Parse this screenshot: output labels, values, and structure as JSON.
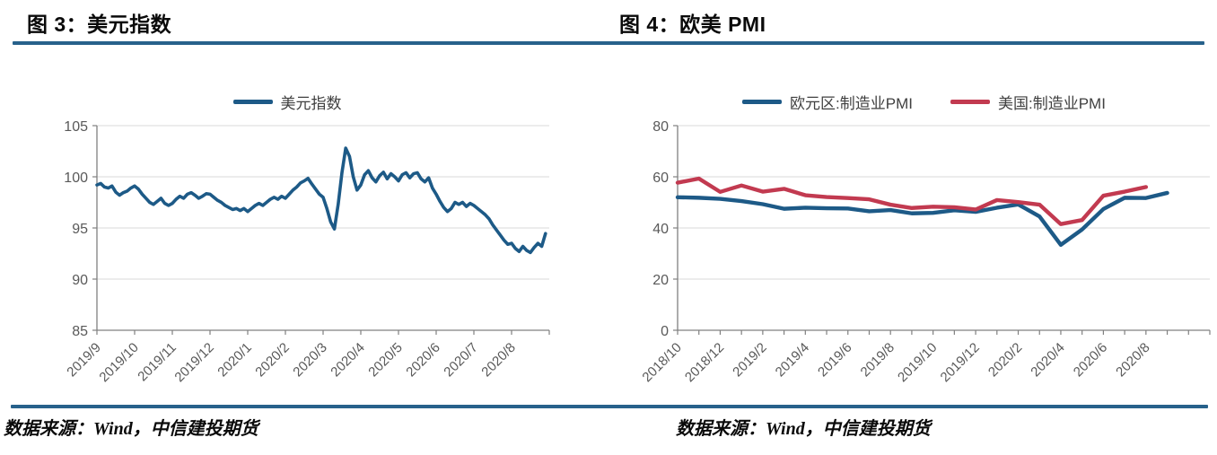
{
  "figures": [
    {
      "title": "图 3：美元指数",
      "source": "数据来源：Wind，中信建投期货"
    },
    {
      "title": "图 4：欧美 PMI",
      "source": "数据来源：Wind，中信建投期货"
    }
  ],
  "colors": {
    "divider": "#27618B",
    "grid": "#D9D9D9",
    "axis": "#808080",
    "tick_label": "#595959",
    "legend_text": "#404040",
    "series_blue": "#1D5A87",
    "series_red": "#C23A50"
  },
  "chart_data": [
    {
      "type": "line",
      "title": "美元指数",
      "xlabel": "",
      "ylabel": "",
      "ylim": [
        85,
        105
      ],
      "yticks": [
        85,
        90,
        95,
        100,
        105
      ],
      "grid": "horizontal",
      "legend_position": "top-center",
      "x_tick_labels": [
        "2019/9",
        "2019/10",
        "2019/11",
        "2019/12",
        "2020/1",
        "2020/2",
        "2020/3",
        "2020/4",
        "2020/5",
        "2020/6",
        "2020/7",
        "2020/8"
      ],
      "x_label_step": 1,
      "points_per_slot": 10,
      "series": [
        {
          "name": "美元指数",
          "color": "#1D5A87",
          "values": [
            99.2,
            99.35,
            99.0,
            98.9,
            99.1,
            98.5,
            98.2,
            98.45,
            98.6,
            98.9,
            99.1,
            98.8,
            98.3,
            97.9,
            97.5,
            97.3,
            97.6,
            97.9,
            97.4,
            97.2,
            97.4,
            97.8,
            98.1,
            97.9,
            98.3,
            98.45,
            98.2,
            97.9,
            98.1,
            98.35,
            98.3,
            98.0,
            97.7,
            97.5,
            97.2,
            97.0,
            96.8,
            96.9,
            96.7,
            96.9,
            96.6,
            96.9,
            97.2,
            97.4,
            97.2,
            97.5,
            97.8,
            98.0,
            97.8,
            98.1,
            97.9,
            98.3,
            98.7,
            99.0,
            99.4,
            99.6,
            99.85,
            99.3,
            98.8,
            98.3,
            98.0,
            96.9,
            95.6,
            94.9,
            97.3,
            100.4,
            102.8,
            102.0,
            100.0,
            98.7,
            99.2,
            100.2,
            100.6,
            99.9,
            99.5,
            100.1,
            100.45,
            99.8,
            100.3,
            100.0,
            99.6,
            100.2,
            100.4,
            99.9,
            100.3,
            100.4,
            99.8,
            99.5,
            99.9,
            98.9,
            98.3,
            97.6,
            97.0,
            96.6,
            96.9,
            97.5,
            97.3,
            97.5,
            97.1,
            97.4,
            97.2,
            96.9,
            96.6,
            96.3,
            95.9,
            95.3,
            94.8,
            94.3,
            93.8,
            93.4,
            93.5,
            93.0,
            92.7,
            93.2,
            92.8,
            92.6,
            93.1,
            93.5,
            93.2,
            94.45
          ]
        }
      ]
    },
    {
      "type": "line",
      "title": "欧美 PMI",
      "xlabel": "",
      "ylabel": "",
      "ylim": [
        0,
        80
      ],
      "yticks": [
        0,
        20,
        40,
        60,
        80
      ],
      "grid": "horizontal",
      "legend_position": "top-center",
      "categories": [
        "2018/10",
        "2018/11",
        "2018/12",
        "2019/1",
        "2019/2",
        "2019/3",
        "2019/4",
        "2019/5",
        "2019/6",
        "2019/7",
        "2019/8",
        "2019/9",
        "2019/10",
        "2019/11",
        "2019/12",
        "2020/1",
        "2020/2",
        "2020/3",
        "2020/4",
        "2020/5",
        "2020/6",
        "2020/7",
        "2020/8",
        "2020/9"
      ],
      "x_tick_labels": [
        "2018/10",
        "2018/12",
        "2019/2",
        "2019/4",
        "2019/6",
        "2019/8",
        "2019/10",
        "2019/12",
        "2020/2",
        "2020/4",
        "2020/6",
        "2020/8"
      ],
      "x_label_step": 2,
      "points_per_slot": 1,
      "series": [
        {
          "name": "欧元区:制造业PMI",
          "color": "#1D5A87",
          "values": [
            52.0,
            51.8,
            51.4,
            50.5,
            49.3,
            47.5,
            47.9,
            47.7,
            47.6,
            46.5,
            47.0,
            45.7,
            45.9,
            46.9,
            46.3,
            47.9,
            49.2,
            44.5,
            33.4,
            39.4,
            47.4,
            51.8,
            51.7,
            53.7
          ]
        },
        {
          "name": "美国:制造业PMI",
          "color": "#C23A50",
          "values": [
            57.7,
            59.3,
            54.1,
            56.6,
            54.2,
            55.3,
            52.8,
            52.1,
            51.7,
            51.2,
            49.1,
            47.8,
            48.3,
            48.1,
            47.2,
            50.9,
            50.1,
            49.1,
            41.5,
            43.1,
            52.6,
            54.2,
            56.0
          ]
        }
      ]
    }
  ]
}
